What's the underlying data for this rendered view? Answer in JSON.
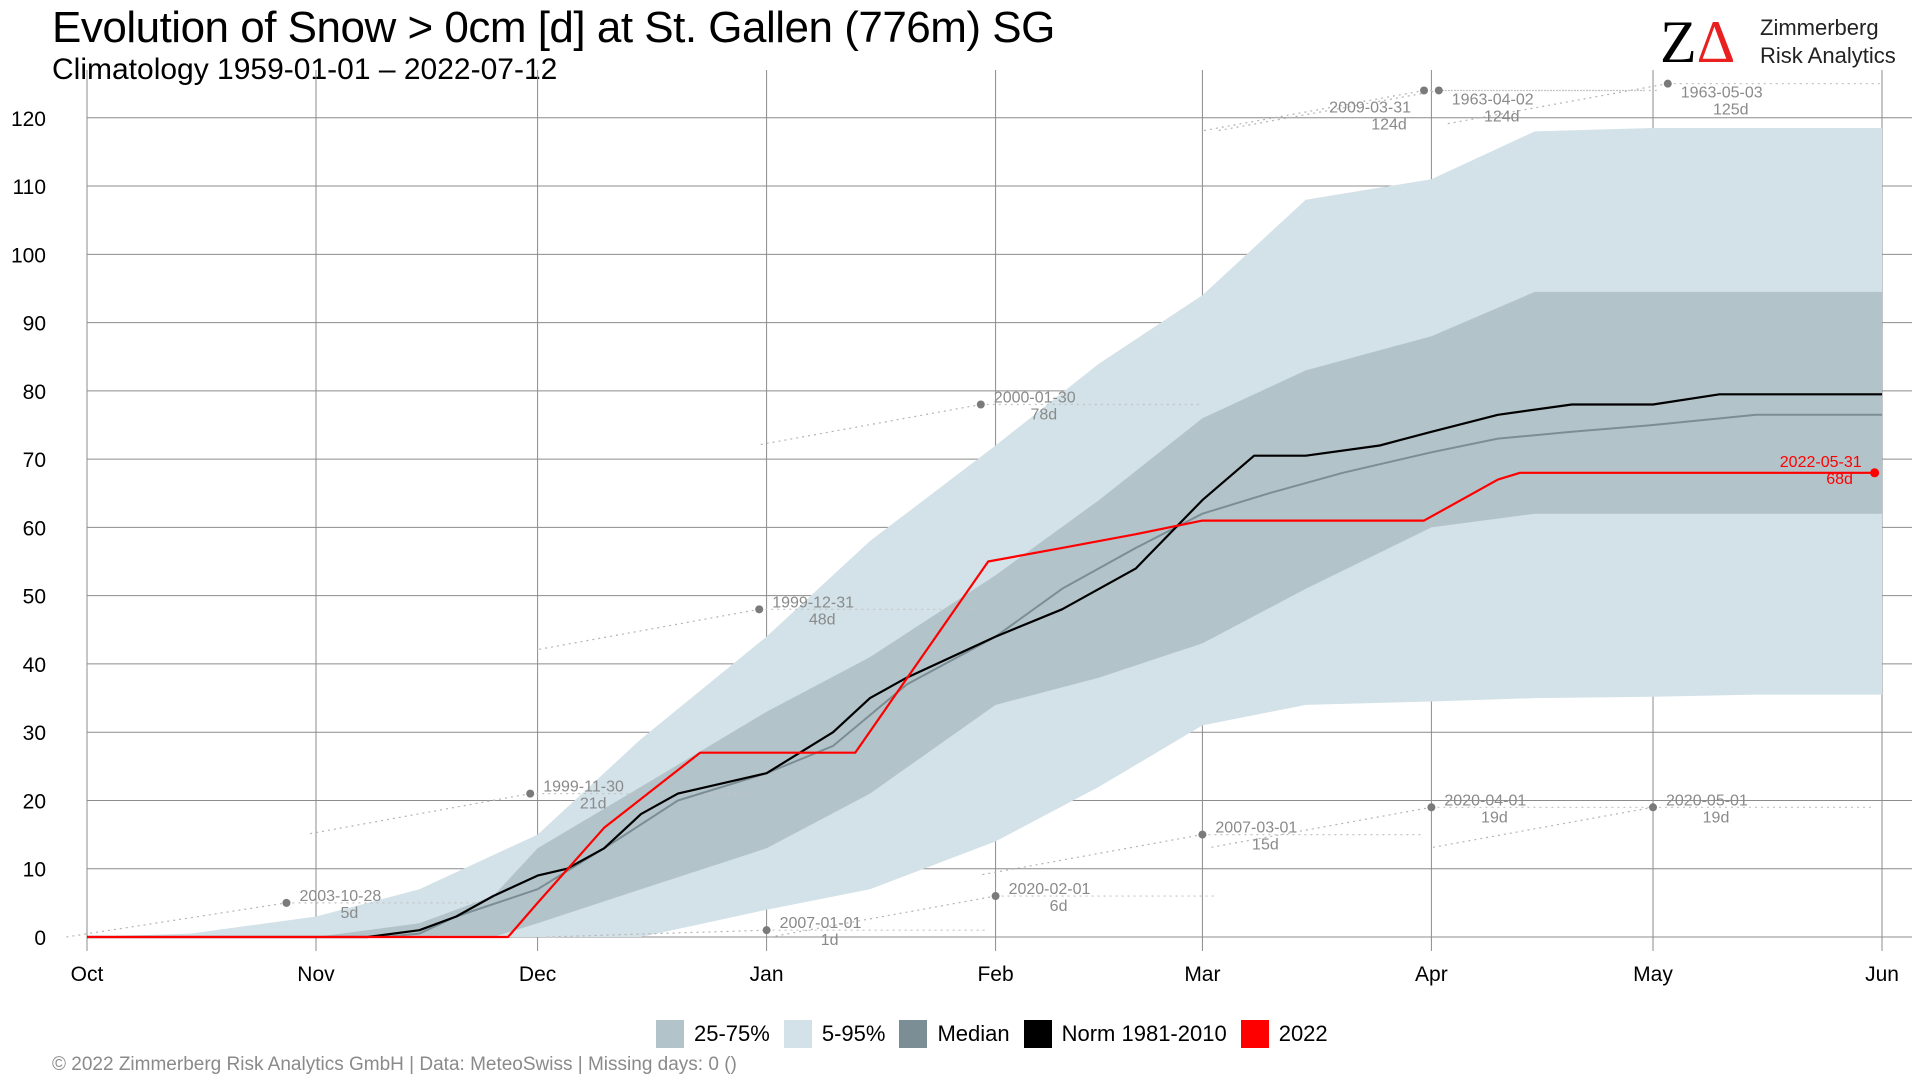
{
  "header": {
    "title": "Evolution of Snow > 0cm [d] at St. Gallen (776m) SG",
    "subtitle": "Climatology 1959-01-01 – 2022-07-12"
  },
  "logo": {
    "mark": "ZΔ",
    "name": "Zimmerberg",
    "sub": "Risk Analytics",
    "color_z": "#000000",
    "color_delta": "#e8201f"
  },
  "legend": {
    "items": [
      {
        "label": "25-75%",
        "color": "#b3c3ca"
      },
      {
        "label": "5-95%",
        "color": "#d2e2e8"
      },
      {
        "label": "Median",
        "color": "#7c8e95"
      },
      {
        "label": "Norm 1981-2010",
        "color": "#000000"
      },
      {
        "label": "2022",
        "color": "#ff0000"
      }
    ]
  },
  "footer": {
    "text": "©  2022 Zimmerberg Risk Analytics GmbH | Data: MeteoSwiss | Missing days: 0 ()"
  },
  "chart_data": {
    "type": "area",
    "x_unit": "date (season Oct–Jun)",
    "xlim": [
      "10-01",
      "06-01"
    ],
    "ylim": [
      0,
      127
    ],
    "x_ticks": [
      "Oct",
      "Nov",
      "Dec",
      "Jan",
      "Feb",
      "Mar",
      "Apr",
      "May",
      "Jun"
    ],
    "y_ticks": [
      0,
      10,
      20,
      30,
      40,
      50,
      60,
      70,
      80,
      90,
      100,
      110,
      120
    ],
    "grid": true,
    "legend_position": "bottom",
    "series": [
      {
        "name": "5-95%",
        "kind": "band",
        "color": "#d2e2e8",
        "x": [
          "10-01",
          "10-15",
          "11-01",
          "11-15",
          "12-01",
          "12-15",
          "01-01",
          "01-15",
          "02-01",
          "02-15",
          "03-01",
          "03-15",
          "04-01",
          "04-15",
          "05-01",
          "05-15",
          "06-01"
        ],
        "low": [
          0,
          0,
          0,
          0,
          0,
          0,
          4,
          7,
          14,
          22,
          31,
          34,
          34.5,
          35,
          35.2,
          35.5,
          35.5
        ],
        "high": [
          0,
          0.5,
          3,
          7,
          15,
          29,
          44,
          58,
          72,
          84,
          94,
          108,
          111,
          118,
          118.5,
          118.5,
          118.5
        ]
      },
      {
        "name": "25-75%",
        "kind": "band",
        "color": "#b3c3ca",
        "x": [
          "10-01",
          "10-15",
          "11-01",
          "11-15",
          "11-25",
          "12-01",
          "12-15",
          "01-01",
          "01-15",
          "02-01",
          "02-15",
          "03-01",
          "03-15",
          "04-01",
          "04-15",
          "05-01",
          "05-15",
          "06-01"
        ],
        "low": [
          0,
          0,
          0,
          0,
          0,
          2,
          7,
          13,
          21,
          34,
          38,
          43,
          51,
          60,
          62,
          62,
          62,
          62
        ],
        "high": [
          0,
          0,
          0,
          2,
          6,
          13,
          22,
          33,
          41,
          53,
          64,
          76,
          83,
          88,
          94.5,
          94.5,
          94.5,
          94.5
        ]
      },
      {
        "name": "Median",
        "kind": "line",
        "color": "#7c8e95",
        "x": [
          "10-01",
          "11-10",
          "11-15",
          "11-20",
          "12-01",
          "12-10",
          "12-20",
          "01-01",
          "01-10",
          "01-20",
          "02-01",
          "02-10",
          "02-20",
          "03-01",
          "03-10",
          "03-20",
          "04-01",
          "04-10",
          "04-20",
          "05-01",
          "05-15",
          "06-01"
        ],
        "y": [
          0,
          0,
          0.5,
          3,
          7,
          13,
          20,
          24,
          28,
          37,
          44,
          51,
          57,
          62,
          65,
          68,
          71,
          73,
          74,
          75,
          76.5,
          76.5
        ]
      },
      {
        "name": "Norm 1981-2010",
        "kind": "line",
        "color": "#000000",
        "x": [
          "10-01",
          "11-08",
          "11-15",
          "11-20",
          "11-25",
          "12-01",
          "12-05",
          "12-10",
          "12-15",
          "12-20",
          "01-01",
          "01-10",
          "01-15",
          "01-20",
          "02-01",
          "02-10",
          "02-20",
          "03-01",
          "03-08",
          "03-15",
          "03-25",
          "04-01",
          "04-10",
          "04-20",
          "05-01",
          "05-10",
          "06-01"
        ],
        "y": [
          0,
          0,
          1,
          3,
          6,
          9,
          10,
          13,
          18,
          21,
          24,
          30,
          35,
          38,
          44,
          48,
          54,
          64,
          70.5,
          70.5,
          72,
          74,
          76.5,
          78,
          78,
          79.5,
          79.5
        ]
      },
      {
        "name": "2022",
        "kind": "line",
        "color": "#ff0000",
        "x": [
          "10-01",
          "11-27",
          "12-01",
          "12-10",
          "12-23",
          "01-13",
          "01-31",
          "02-10",
          "02-20",
          "03-01",
          "03-31",
          "04-10",
          "04-13",
          "05-31"
        ],
        "y": [
          0,
          0,
          5,
          16,
          27,
          27,
          55,
          57,
          59,
          61,
          61,
          67,
          68,
          68
        ]
      }
    ],
    "records": [
      {
        "date": "2003-10-28",
        "value": 5,
        "label": "5d",
        "x": "10-28"
      },
      {
        "date": "1999-11-30",
        "value": 21,
        "label": "21d",
        "x": "11-30"
      },
      {
        "date": "1999-12-31",
        "value": 48,
        "label": "48d",
        "x": "12-31"
      },
      {
        "date": "2007-01-01",
        "value": 1,
        "label": "1d",
        "x": "01-01"
      },
      {
        "date": "2000-01-30",
        "value": 78,
        "label": "78d",
        "x": "01-30"
      },
      {
        "date": "2020-02-01",
        "value": 6,
        "label": "6d",
        "x": "02-01"
      },
      {
        "date": "2007-03-01",
        "value": 15,
        "label": "15d",
        "x": "03-01"
      },
      {
        "date": "2009-03-31",
        "value": 124,
        "label": "124d",
        "x": "03-31"
      },
      {
        "date": "1963-04-02",
        "value": 124,
        "label": "124d",
        "x": "04-02"
      },
      {
        "date": "2020-04-01",
        "value": 19,
        "label": "19d",
        "x": "04-01"
      },
      {
        "date": "1963-05-03",
        "value": 125,
        "label": "125d",
        "x": "05-03"
      },
      {
        "date": "2020-05-01",
        "value": 19,
        "label": "19d",
        "x": "05-01"
      },
      {
        "date": "2022-05-31",
        "value": 68,
        "label": "68d",
        "x": "05-31",
        "highlight": true
      }
    ]
  }
}
